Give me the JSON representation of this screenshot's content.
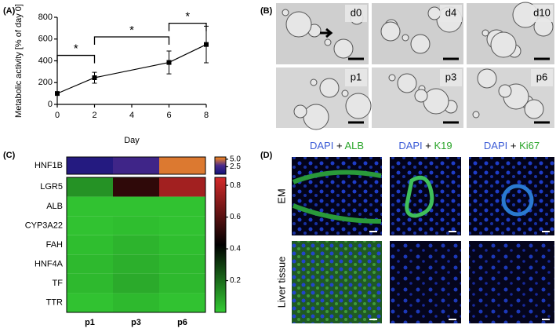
{
  "panel_labels": [
    "(A)",
    "(B)",
    "(C)",
    "(D)"
  ],
  "chart_data": [
    {
      "type": "line",
      "x_label": "Day",
      "y_label": "Metabolic activity [% of day 0]",
      "x": [
        0,
        2,
        6,
        8
      ],
      "values": [
        100,
        245,
        385,
        550
      ],
      "errors": [
        10,
        50,
        105,
        168
      ],
      "color": "#000000",
      "xlim": [
        0,
        8
      ],
      "xticks": [
        0,
        2,
        4,
        6,
        8
      ],
      "ylim": [
        0,
        800
      ],
      "yticks": [
        0,
        200,
        400,
        600,
        800
      ],
      "significance": [
        {
          "x": [
            0,
            2
          ],
          "y": 450,
          "label": "*"
        },
        {
          "x": [
            2,
            6
          ],
          "y": 620,
          "label": "*"
        },
        {
          "x": [
            6,
            8
          ],
          "y": 745,
          "label": "*"
        }
      ]
    },
    {
      "type": "heatmap",
      "columns": [
        "p1",
        "p3",
        "p6"
      ],
      "groups": [
        {
          "rows": [
            "HNF1B"
          ],
          "values": [
            [
              0.9,
              2.3,
              5.2
            ]
          ],
          "zlim": [
            0,
            5.75
          ],
          "zticks": [
            2.5,
            {
              "value": 5,
              "label": "5.0"
            }
          ],
          "colors": [
            "#13137a",
            "#4a2a8c",
            "#ff8c1a"
          ]
        },
        {
          "rows": [
            "LGR5",
            "ALB",
            "CYP3A22",
            "FAH",
            "HNF4A",
            "TF",
            "TTR"
          ],
          "values": [
            [
              0.12,
              0.52,
              0.75
            ],
            [
              0.02,
              0.02,
              0.02
            ],
            [
              0.02,
              0.03,
              0.02
            ],
            [
              0.03,
              0.05,
              0.03
            ],
            [
              0.04,
              0.06,
              0.04
            ],
            [
              0.04,
              0.07,
              0.04
            ],
            [
              0.02,
              0.04,
              0.02
            ]
          ],
          "zlim": [
            0,
            0.85
          ],
          "zticks": [
            0.2,
            0.4,
            0.6,
            0.8
          ],
          "colors": [
            "#33cc33",
            "#000000",
            "#d42a2a"
          ]
        }
      ]
    }
  ],
  "micrographs": [
    "d0",
    "d4",
    "d10",
    "p1",
    "p3",
    "p6"
  ],
  "fluorescence": {
    "headers": [
      {
        "stain": "DAPI",
        "plus": "+",
        "marker": "ALB"
      },
      {
        "stain": "DAPI",
        "plus": "+",
        "marker": "K19"
      },
      {
        "stain": "DAPI",
        "plus": "+",
        "marker": "Ki67"
      }
    ],
    "rows": [
      "EM",
      "Liver tissue"
    ]
  }
}
